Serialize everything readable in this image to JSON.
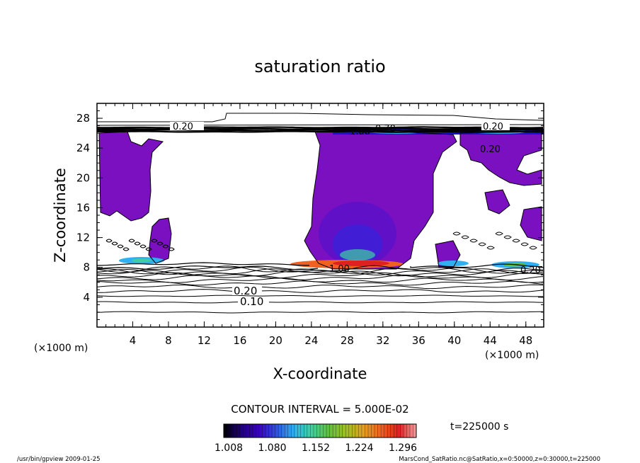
{
  "chart_data": {
    "type": "contour",
    "title": "saturation ratio",
    "xlabel": "X-coordinate",
    "ylabel": "Z-coordinate",
    "x_units": "(×1000 m)",
    "y_units": "(×1000 m)",
    "xlim": [
      0,
      50
    ],
    "ylim": [
      0,
      30
    ],
    "x_ticks": [
      4,
      8,
      12,
      16,
      20,
      24,
      28,
      32,
      36,
      40,
      44,
      48
    ],
    "y_ticks": [
      4,
      8,
      12,
      16,
      20,
      24,
      28
    ],
    "contour_interval_text": "CONTOUR INTERVAL = 5.000E-02",
    "time_text": "t=225000 s",
    "contour_labels": [
      "0.20",
      "0.20",
      "0.20",
      "0.10",
      "1.00",
      "1.00",
      "0.70",
      "0.20",
      "0.20"
    ],
    "colorbar": {
      "tick_labels": [
        "1.008",
        "1.080",
        "1.152",
        "1.224",
        "1.296"
      ],
      "colors": [
        "#000000",
        "#20007a",
        "#3a00c0",
        "#3050e0",
        "#30b0f0",
        "#40d0a0",
        "#60c040",
        "#a0c020",
        "#e0a020",
        "#f06020",
        "#e02020",
        "#f0a0a0"
      ]
    },
    "fill_color": "#7a10c0",
    "footer_left": "/usr/bin/gpview  2009-01-25",
    "footer_right": "MarsCond_SatRatio.nc@SatRatio,x=0:50000,z=0:30000,t=225000"
  }
}
